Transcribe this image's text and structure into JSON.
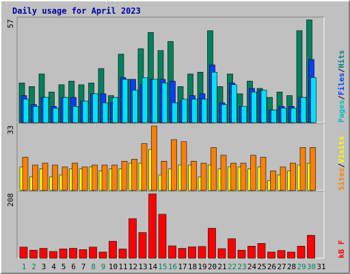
{
  "chart_data": {
    "type": "bar",
    "title": "Daily usage for April 2023",
    "x": {
      "days": [
        1,
        2,
        3,
        4,
        5,
        6,
        7,
        8,
        9,
        10,
        11,
        12,
        13,
        14,
        15,
        16,
        17,
        18,
        19,
        20,
        21,
        22,
        23,
        24,
        25,
        26,
        27,
        28,
        29,
        30,
        31
      ],
      "weekend_days": [
        1,
        2,
        8,
        9,
        15,
        16,
        22,
        23,
        29,
        30
      ]
    },
    "colors": {
      "title": "#0000a0",
      "hits": "#00805c",
      "files": "#0040ff",
      "pages": "#00e0ff",
      "visits": "#ffff00",
      "sites": "#ff8000",
      "kbytes": "#ff0000",
      "weekend_label": "#00805c",
      "weekday_label": "#000000"
    },
    "panels": [
      {
        "id": "hits-files-pages",
        "max_label": "57",
        "ymax": 57,
        "legend": [
          {
            "text": "Pages",
            "color": "#00c0c0"
          },
          {
            "text": "/",
            "color": "#000000"
          },
          {
            "text": "Files",
            "color": "#0040ff"
          },
          {
            "text": "/",
            "color": "#000000"
          },
          {
            "text": "Hits",
            "color": "#008080"
          }
        ],
        "series": [
          {
            "name": "Hits",
            "values": [
              22,
              20,
              27,
              17,
              21,
              23,
              21,
              22,
              30,
              15,
              38,
              24,
              41,
              50,
              40,
              45,
              20,
              27,
              28,
              51,
              20,
              27,
              16,
              23,
              19,
              14,
              17,
              15,
              51,
              57
            ]
          },
          {
            "name": "Files",
            "values": [
              15,
              10,
              14,
              9,
              14,
              14,
              12,
              16,
              16,
              11,
              25,
              24,
              21,
              24,
              24,
              23,
              12,
              15,
              16,
              32,
              11,
              22,
              9,
              19,
              18,
              7,
              9,
              9,
              14,
              35
            ]
          },
          {
            "name": "Pages",
            "values": [
              13,
              9,
              14,
              8,
              14,
              9,
              12,
              16,
              11,
              14,
              24,
              18,
              25,
              24,
              22,
              11,
              13,
              13,
              13,
              28,
              10,
              21,
              9,
              17,
              18,
              7,
              8,
              8,
              14,
              25
            ]
          }
        ]
      },
      {
        "id": "sites-visits",
        "max_label": "33",
        "ymax": 33,
        "legend": [
          {
            "text": "Sites",
            "color": "#ff8000"
          },
          {
            "text": "/",
            "color": "#000000"
          },
          {
            "text": "Visits",
            "color": "#ffff00"
          }
        ],
        "series": [
          {
            "name": "Sites",
            "values": [
              17,
              13,
              14,
              13,
              12,
              14,
              12,
              13,
              13,
              13,
              15,
              16,
              24,
              33,
              15,
              26,
              25,
              15,
              14,
              22,
              18,
              14,
              14,
              18,
              17,
              10,
              12,
              14,
              22,
              22
            ]
          },
          {
            "name": "Visits",
            "values": [
              12,
              7,
              11,
              7,
              8,
              11,
              11,
              12,
              10,
              11,
              11,
              14,
              14,
              21,
              8,
              11,
              13,
              13,
              7,
              13,
              11,
              12,
              12,
              11,
              12,
              5,
              8,
              10,
              13,
              14
            ]
          }
        ]
      },
      {
        "id": "kbytes",
        "max_label": "208",
        "ymax": 208,
        "legend": [
          {
            "text": "kB F",
            "color": "#ff0000"
          }
        ],
        "series": [
          {
            "name": "kB F",
            "values": [
              36,
              26,
              32,
              22,
              30,
              32,
              28,
              36,
              20,
              55,
              30,
              128,
              83,
              208,
              142,
              40,
              32,
              37,
              38,
              97,
              31,
              63,
              26,
              39,
              48,
              20,
              25,
              20,
              39,
              74
            ]
          }
        ]
      }
    ]
  }
}
